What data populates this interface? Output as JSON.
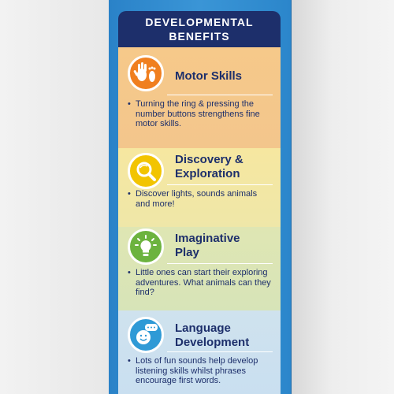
{
  "header": {
    "line1": "DEVELOPMENTAL",
    "line2": "BENEFITS"
  },
  "sections": [
    {
      "title_l1": "Motor Skills",
      "title_l2": "",
      "text": "Turning the ring & pressing the number buttons strengthens fine motor skills.",
      "icon": "hand-foot-icon",
      "color": "#f07f1f"
    },
    {
      "title_l1": "Discovery &",
      "title_l2": "Exploration",
      "text": "Discover lights, sounds animals and more!",
      "icon": "magnifier-icon",
      "color": "#f2c400"
    },
    {
      "title_l1": "Imaginative",
      "title_l2": "Play",
      "text": "Little ones can start their exploring adventures. What animals can they find?",
      "icon": "lightbulb-icon",
      "color": "#6cb33f"
    },
    {
      "title_l1": "Language",
      "title_l2": "Development",
      "text": "Lots of fun sounds help develop listening skills whilst phrases encourage first words.",
      "icon": "speech-face-icon",
      "color": "#2f9ad6"
    }
  ],
  "colors": {
    "navy": "#1d2f6b",
    "box_blue": "#3a95d6"
  }
}
